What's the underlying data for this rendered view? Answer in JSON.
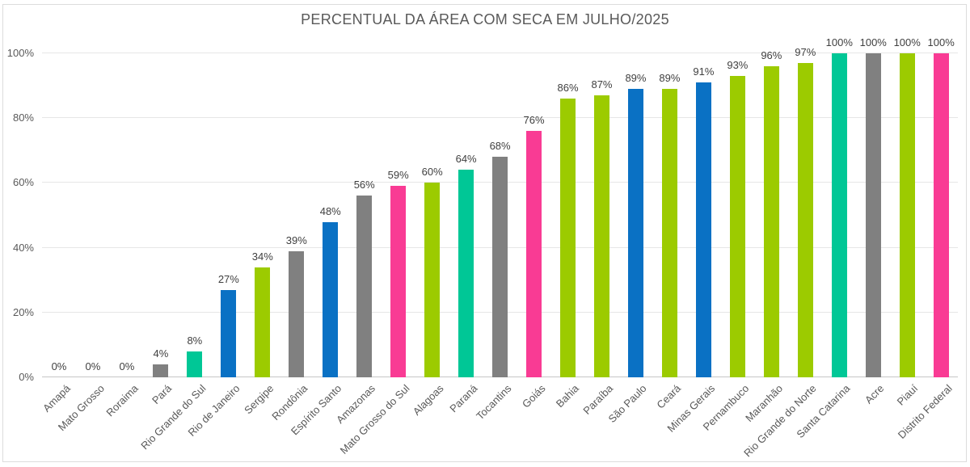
{
  "window": {
    "border_color": "#DCDCDC",
    "background_color": "#FFFFFF"
  },
  "chart_data": {
    "type": "bar",
    "title": "PERCENTUAL DA ÁREA COM SECA EM JULHO/2025",
    "xlabel": "",
    "ylabel": "",
    "legend": "none",
    "grid": true,
    "ylim": [
      0,
      100
    ],
    "y_ticks": [
      0,
      20,
      40,
      60,
      80,
      100
    ],
    "y_tick_suffix": "%",
    "value_label_suffix": "%",
    "categories": [
      "Amapá",
      "Mato Grosso",
      "Roraima",
      "Pará",
      "Rio Grande do Sul",
      "Rio de Janeiro",
      "Sergipe",
      "Rondônia",
      "Espírito Santo",
      "Amazonas",
      "Mato Grosso do Sul",
      "Alagoas",
      "Paraná",
      "Tocantins",
      "Goiás",
      "Bahia",
      "Paraíba",
      "São Paulo",
      "Ceará",
      "Minas Gerais",
      "Pernambuco",
      "Maranhão",
      "Rio Grande do Norte",
      "Santa Catarina",
      "Acre",
      "Piauí",
      "Distrito Federal"
    ],
    "values": [
      0,
      0,
      0,
      4,
      8,
      27,
      34,
      39,
      48,
      56,
      59,
      60,
      64,
      68,
      76,
      86,
      87,
      89,
      89,
      91,
      93,
      96,
      97,
      100,
      100,
      100,
      100
    ],
    "bar_color_keys": [
      "gray",
      "gray",
      "gray",
      "gray",
      "green",
      "blue",
      "lime",
      "gray",
      "blue",
      "gray",
      "pink",
      "lime",
      "green",
      "gray",
      "pink",
      "lime",
      "lime",
      "blue",
      "lime",
      "blue",
      "lime",
      "lime",
      "lime",
      "green",
      "gray",
      "lime",
      "pink"
    ],
    "palette": {
      "gray": "#808080",
      "green": "#00C796",
      "blue": "#0A71C4",
      "lime": "#9CCB00",
      "pink": "#F93B94"
    },
    "colors_meta": {
      "gridline": "#E6E6E6",
      "axis_line": "#C6C6C6",
      "tick_text": "#595959",
      "value_text": "#3F3F3F",
      "title_text": "#595959"
    }
  }
}
